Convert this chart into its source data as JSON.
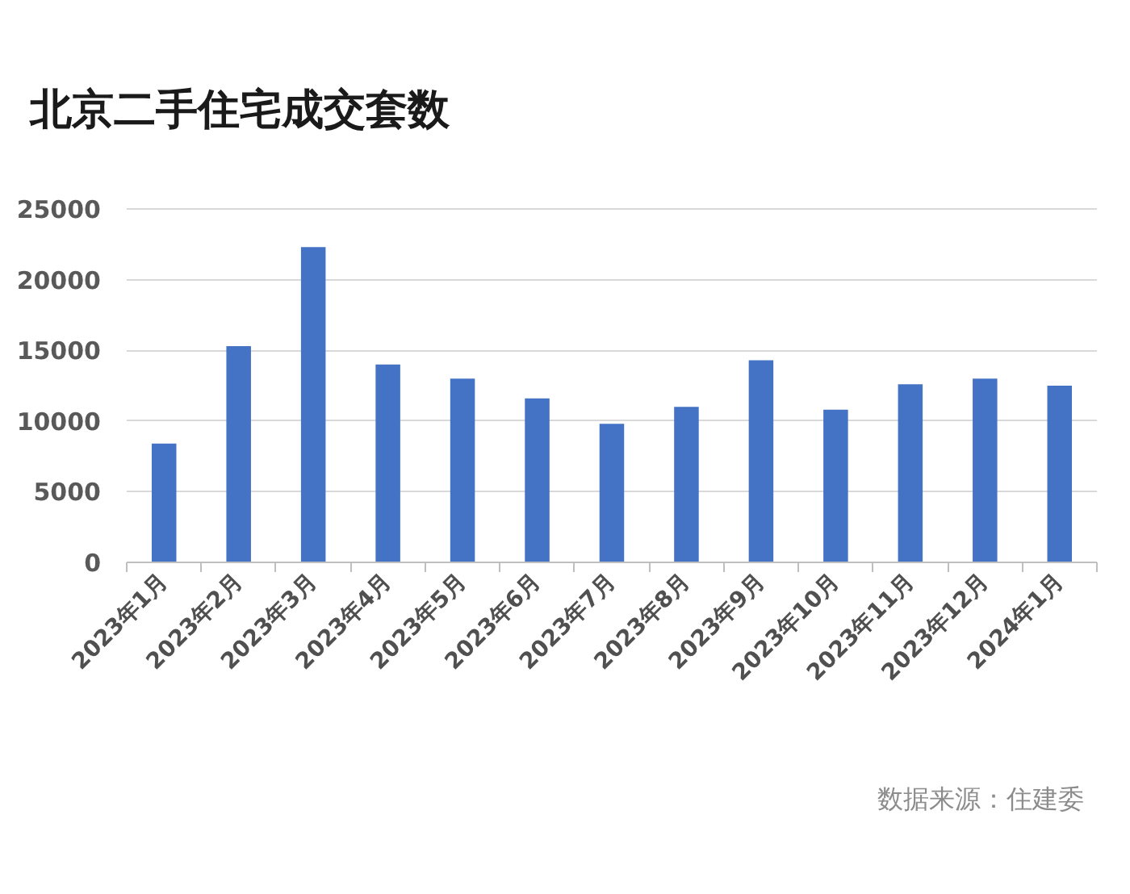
{
  "chart_data": {
    "type": "bar",
    "title": "北京二手住宅成交套数",
    "categories": [
      "2023年1月",
      "2023年2月",
      "2023年3月",
      "2023年4月",
      "2023年5月",
      "2023年6月",
      "2023年7月",
      "2023年8月",
      "2023年9月",
      "2023年10月",
      "2023年11月",
      "2023年12月",
      "2024年1月"
    ],
    "values": [
      8400,
      15300,
      22300,
      14000,
      13000,
      11600,
      9800,
      11000,
      14300,
      10800,
      12600,
      13000,
      12500
    ],
    "color": "#4472c4",
    "ylim": [
      0,
      25000
    ],
    "yticks": [
      0,
      5000,
      10000,
      15000,
      20000,
      25000
    ],
    "grid": "y",
    "annotations": [
      "数据来源：住建委"
    ]
  }
}
